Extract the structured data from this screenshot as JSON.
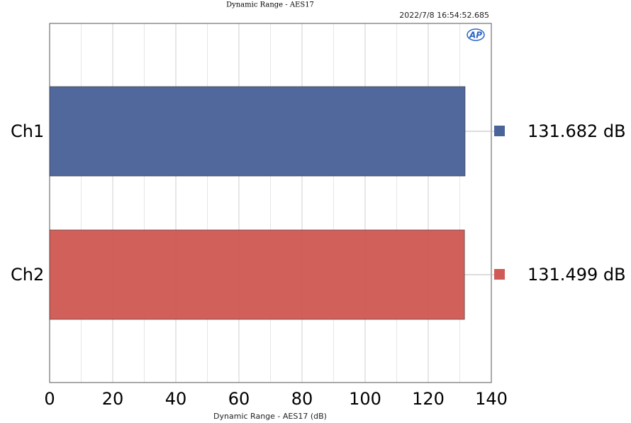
{
  "chart_data": {
    "type": "hbar",
    "title": "Dynamic Range - AES17",
    "timestamp": "2022/7/8 16:54:52.685",
    "logo": "AP",
    "xlabel": "Dynamic Range - AES17 (dB)",
    "categories": [
      "Ch1",
      "Ch2"
    ],
    "values": [
      131.682,
      131.499
    ],
    "value_labels": [
      "131.682 dB",
      "131.499 dB"
    ],
    "colors": [
      "#4a6399",
      "#d05a55"
    ],
    "xlim": [
      0,
      140
    ],
    "xticks": [
      0,
      20,
      40,
      60,
      80,
      100,
      120,
      140
    ],
    "minor_xticks": [
      10,
      30,
      50,
      70,
      90,
      110,
      130
    ],
    "grid": true
  }
}
